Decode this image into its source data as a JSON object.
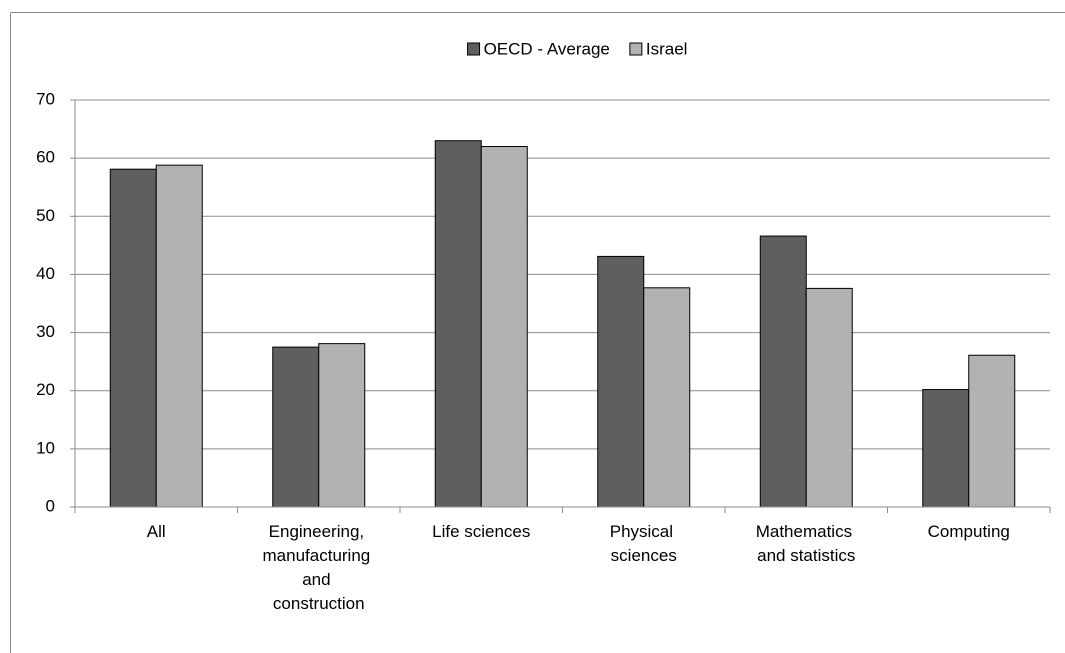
{
  "chart_data": {
    "type": "bar",
    "categories": [
      "All",
      "Engineering, manufacturing and construction",
      "Life sciences",
      "Physical sciences",
      "Mathematics and statistics",
      "Computing"
    ],
    "series": [
      {
        "name": "OECD - Average",
        "color": "#5f5f5f",
        "values": [
          58.1,
          27.5,
          63,
          43.1,
          46.6,
          20.2
        ]
      },
      {
        "name": "Israel",
        "color": "#b2b2b2",
        "values": [
          58.8,
          28.1,
          62,
          37.7,
          37.6,
          26.1
        ]
      }
    ],
    "ylim": [
      0,
      70
    ],
    "yticks": [
      0,
      10,
      20,
      30,
      40,
      50,
      60,
      70
    ],
    "grid": true,
    "legend": "top"
  }
}
